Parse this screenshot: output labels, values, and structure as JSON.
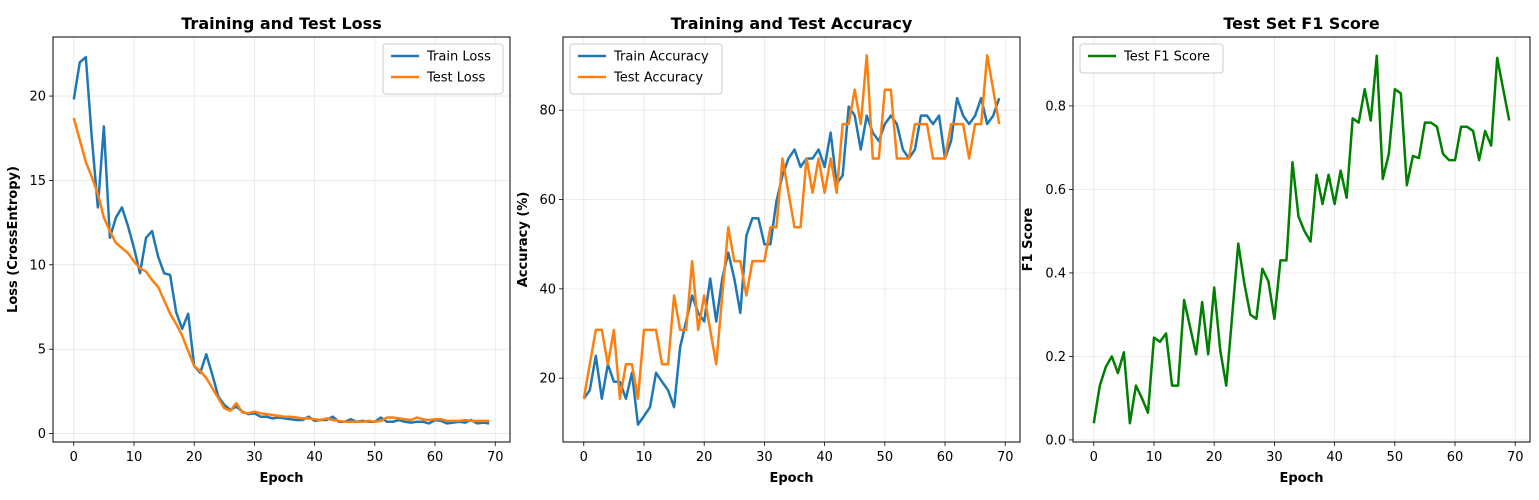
{
  "chart_data": [
    {
      "type": "line",
      "title": "Training and Test Loss",
      "xlabel": "Epoch",
      "ylabel": "Loss (CrossEntropy)",
      "xlim": [
        -3.45,
        72.45
      ],
      "ylim": [
        -0.5,
        23.5
      ],
      "xticks": [
        0,
        10,
        20,
        30,
        40,
        50,
        60,
        70
      ],
      "yticks": [
        0,
        5,
        10,
        15,
        20
      ],
      "grid": true,
      "legend": "top-right",
      "series": [
        {
          "name": "Train Loss",
          "color": "#1f77b4",
          "values": [
            19.8,
            22.0,
            22.3,
            17.5,
            13.4,
            18.2,
            11.6,
            12.8,
            13.4,
            12.3,
            11.0,
            9.5,
            11.6,
            12.0,
            10.5,
            9.5,
            9.4,
            7.2,
            6.2,
            7.1,
            4.0,
            3.6,
            4.7,
            3.5,
            2.2,
            1.7,
            1.4,
            1.6,
            1.3,
            1.15,
            1.2,
            1.0,
            1.0,
            0.9,
            0.95,
            0.9,
            0.85,
            0.8,
            0.8,
            1.0,
            0.75,
            0.8,
            0.8,
            1.0,
            0.7,
            0.7,
            0.85,
            0.7,
            0.75,
            0.7,
            0.7,
            0.95,
            0.7,
            0.7,
            0.8,
            0.7,
            0.65,
            0.7,
            0.7,
            0.6,
            0.8,
            0.75,
            0.6,
            0.65,
            0.7,
            0.65,
            0.8,
            0.6,
            0.65,
            0.6
          ]
        },
        {
          "name": "Test Loss",
          "color": "#ff7f0e",
          "values": [
            18.7,
            17.4,
            16.1,
            15.2,
            14.2,
            12.8,
            12.0,
            11.3,
            11.0,
            10.7,
            10.2,
            9.8,
            9.6,
            9.1,
            8.7,
            7.9,
            7.1,
            6.5,
            5.8,
            4.9,
            4.0,
            3.7,
            3.3,
            2.7,
            2.1,
            1.5,
            1.35,
            1.8,
            1.25,
            1.2,
            1.3,
            1.2,
            1.15,
            1.1,
            1.05,
            1.0,
            1.0,
            0.95,
            0.9,
            0.9,
            0.85,
            0.8,
            0.9,
            0.8,
            0.75,
            0.7,
            0.7,
            0.7,
            0.7,
            0.75,
            0.7,
            0.75,
            0.95,
            0.95,
            0.9,
            0.85,
            0.8,
            0.95,
            0.85,
            0.8,
            0.85,
            0.85,
            0.75,
            0.75,
            0.75,
            0.8,
            0.75,
            0.75,
            0.75,
            0.75
          ]
        }
      ]
    },
    {
      "type": "line",
      "title": "Training and Test Accuracy",
      "xlabel": "Epoch",
      "ylabel": "Accuracy (%)",
      "xlim": [
        -3.45,
        72.45
      ],
      "ylim": [
        5.7,
        96.4
      ],
      "xticks": [
        0,
        10,
        20,
        30,
        40,
        50,
        60,
        70
      ],
      "yticks": [
        20,
        40,
        60,
        80
      ],
      "grid": true,
      "legend": "top-left",
      "series": [
        {
          "name": "Train Accuracy",
          "color": "#1f77b4",
          "values": [
            15.4,
            17.3,
            25.0,
            15.4,
            23.1,
            19.2,
            19.2,
            15.4,
            21.2,
            9.6,
            11.5,
            13.5,
            21.2,
            19.2,
            17.3,
            13.5,
            26.9,
            32.7,
            38.5,
            34.6,
            32.7,
            42.3,
            32.7,
            42.3,
            48.1,
            42.3,
            34.6,
            51.9,
            55.8,
            55.8,
            50.0,
            50.0,
            59.6,
            65.4,
            69.2,
            71.2,
            67.3,
            69.2,
            69.2,
            71.2,
            67.3,
            75.0,
            63.5,
            65.4,
            80.8,
            78.8,
            71.2,
            78.8,
            75.0,
            73.1,
            76.9,
            78.8,
            76.9,
            71.2,
            69.2,
            71.2,
            78.8,
            78.8,
            76.9,
            78.8,
            69.2,
            73.1,
            82.7,
            78.8,
            76.9,
            78.8,
            82.7,
            76.9,
            78.8,
            82.7
          ]
        },
        {
          "name": "Test Accuracy",
          "color": "#ff7f0e",
          "values": [
            15.4,
            23.1,
            30.8,
            30.8,
            23.1,
            30.8,
            15.4,
            23.1,
            23.1,
            15.4,
            30.8,
            30.8,
            30.8,
            23.1,
            23.1,
            38.5,
            30.8,
            30.8,
            46.2,
            30.8,
            38.5,
            30.8,
            23.1,
            38.5,
            53.8,
            46.2,
            46.2,
            38.5,
            46.2,
            46.2,
            46.2,
            53.8,
            53.8,
            69.2,
            61.5,
            53.8,
            53.8,
            69.2,
            61.5,
            69.2,
            61.5,
            69.2,
            61.5,
            76.9,
            76.9,
            84.6,
            76.9,
            92.3,
            69.2,
            69.2,
            84.6,
            84.6,
            69.2,
            69.2,
            69.2,
            76.9,
            76.9,
            76.9,
            69.2,
            69.2,
            69.2,
            76.9,
            76.9,
            76.9,
            69.2,
            76.9,
            76.9,
            92.3,
            84.6,
            76.9
          ]
        }
      ]
    },
    {
      "type": "line",
      "title": "Test Set F1 Score",
      "xlabel": "Epoch",
      "ylabel": "F1 Score",
      "xlim": [
        -3.45,
        72.45
      ],
      "ylim": [
        -0.005,
        0.965
      ],
      "xticks": [
        0,
        10,
        20,
        30,
        40,
        50,
        60,
        70
      ],
      "yticks": [
        0.0,
        0.2,
        0.4,
        0.6,
        0.8
      ],
      "grid": true,
      "legend": "top-left",
      "series": [
        {
          "name": "Test F1 Score",
          "color": "#008000",
          "values": [
            0.04,
            0.13,
            0.175,
            0.2,
            0.16,
            0.21,
            0.04,
            0.13,
            0.1,
            0.065,
            0.245,
            0.235,
            0.255,
            0.13,
            0.13,
            0.335,
            0.27,
            0.205,
            0.33,
            0.205,
            0.365,
            0.215,
            0.13,
            0.3,
            0.47,
            0.375,
            0.3,
            0.29,
            0.41,
            0.38,
            0.29,
            0.43,
            0.43,
            0.665,
            0.535,
            0.5,
            0.475,
            0.635,
            0.565,
            0.635,
            0.565,
            0.645,
            0.58,
            0.77,
            0.76,
            0.84,
            0.765,
            0.92,
            0.625,
            0.685,
            0.84,
            0.83,
            0.61,
            0.68,
            0.675,
            0.76,
            0.76,
            0.75,
            0.685,
            0.67,
            0.67,
            0.75,
            0.75,
            0.74,
            0.67,
            0.74,
            0.705,
            0.915,
            0.84,
            0.765
          ]
        }
      ]
    }
  ]
}
